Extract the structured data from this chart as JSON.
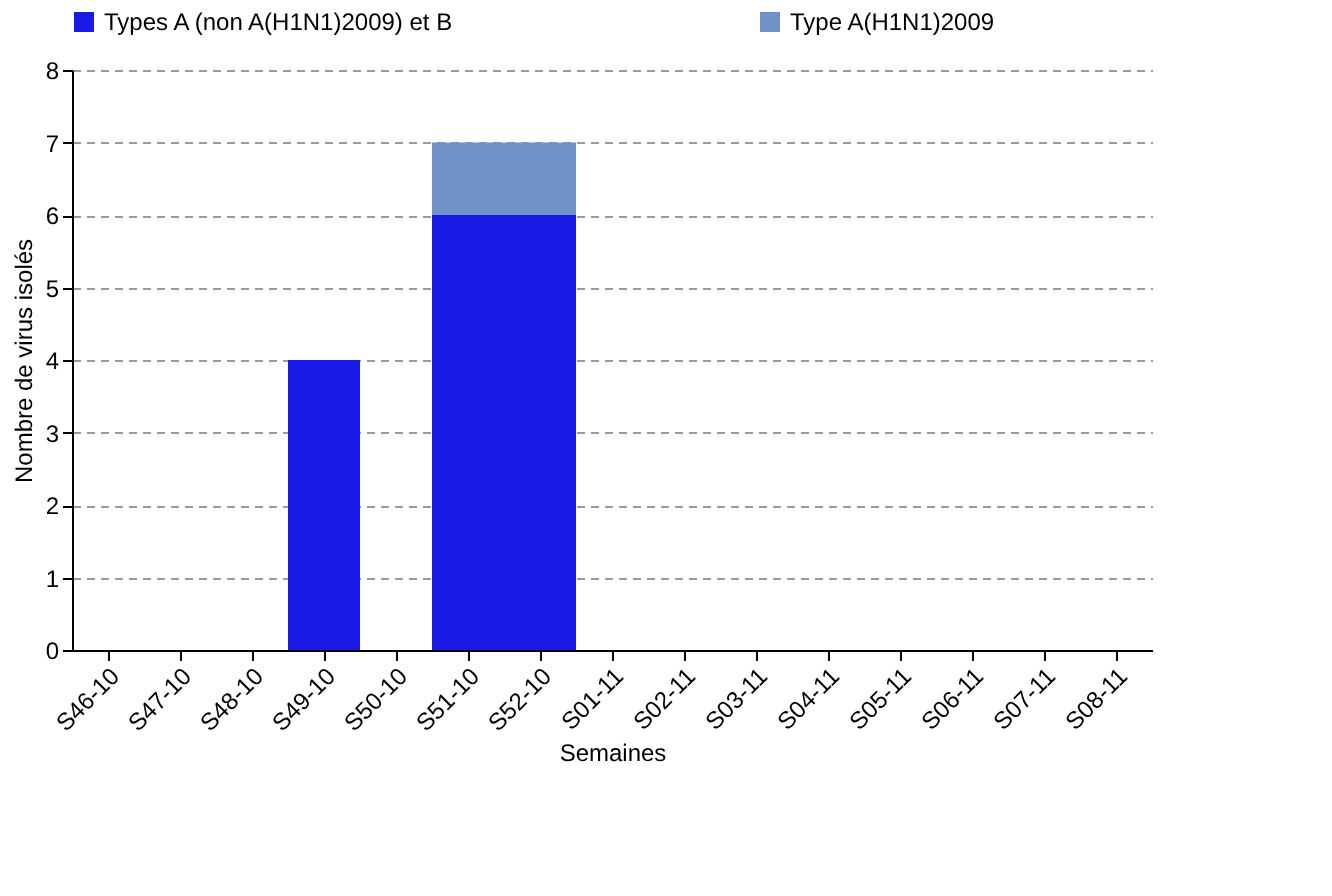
{
  "chart_data": {
    "type": "bar",
    "stacked": true,
    "xlabel": "Semaines",
    "ylabel": "Nombre de virus isolés",
    "categories": [
      "S46-10",
      "S47-10",
      "S48-10",
      "S49-10",
      "S50-10",
      "S51-10",
      "S52-10",
      "S01-11",
      "S02-11",
      "S03-11",
      "S04-11",
      "S05-11",
      "S06-11",
      "S07-11",
      "S08-11"
    ],
    "series": [
      {
        "name": "Types A (non A(H1N1)2009) et B",
        "color": "#1a1ae6",
        "values": [
          0,
          0,
          0,
          4,
          0,
          6,
          6,
          0,
          0,
          0,
          0,
          0,
          0,
          0,
          0
        ]
      },
      {
        "name": "Type A(H1N1)2009",
        "color": "#7090c8",
        "values": [
          0,
          0,
          0,
          0,
          0,
          1,
          1,
          0,
          0,
          0,
          0,
          0,
          0,
          0,
          0
        ]
      }
    ],
    "ylim": [
      0,
      8
    ],
    "yticks": [
      0,
      1,
      2,
      3,
      4,
      5,
      6,
      7,
      8
    ],
    "grid": "y",
    "legend": "top"
  }
}
